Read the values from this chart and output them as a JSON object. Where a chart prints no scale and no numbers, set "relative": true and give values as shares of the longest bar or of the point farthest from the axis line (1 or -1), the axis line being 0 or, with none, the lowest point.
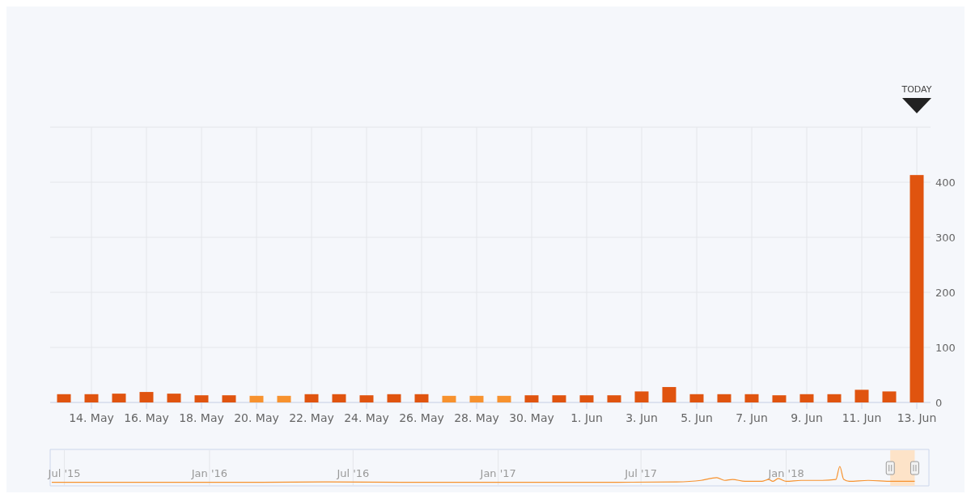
{
  "chart_data": [
    {
      "type": "bar",
      "categories": [
        null,
        "14. May",
        null,
        "16. May",
        null,
        "18. May",
        null,
        "20. May",
        null,
        "22. May",
        null,
        "24. May",
        null,
        "26. May",
        null,
        "28. May",
        null,
        "30. May",
        null,
        "1. Jun",
        null,
        "3. Jun",
        null,
        "5. Jun",
        null,
        "7. Jun",
        null,
        "9. Jun",
        null,
        "11. Jun",
        null,
        "13. Jun"
      ],
      "values": [
        15,
        15,
        16,
        19,
        16,
        13,
        13,
        12,
        12,
        15,
        15,
        13,
        15,
        15,
        12,
        12,
        12,
        13,
        13,
        13,
        13,
        20,
        28,
        15,
        15,
        15,
        13,
        15,
        15,
        23,
        20,
        413
      ],
      "colors": [
        "#e0540f",
        "#e0540f",
        "#e0540f",
        "#e0540f",
        "#e0540f",
        "#e0540f",
        "#e0540f",
        "#f7922e",
        "#f7922e",
        "#e0540f",
        "#e0540f",
        "#e0540f",
        "#e0540f",
        "#e0540f",
        "#f7922e",
        "#f7922e",
        "#f7922e",
        "#e0540f",
        "#e0540f",
        "#e0540f",
        "#e0540f",
        "#e0540f",
        "#e0540f",
        "#e0540f",
        "#e0540f",
        "#e0540f",
        "#e0540f",
        "#e0540f",
        "#e0540f",
        "#e0540f",
        "#e0540f",
        "#e0540f"
      ],
      "ylim": [
        0,
        500
      ],
      "yticks": [
        0,
        100,
        200,
        300,
        400,
        {
          "value": 500,
          "label": null
        }
      ],
      "grid": true,
      "annotations": [
        "TODAY"
      ]
    },
    {
      "type": "line",
      "relative": true,
      "color": "#f7922e",
      "x": [
        "2015-06-15",
        "2015-09-01",
        "2015-12-01",
        "2016-03-01",
        "2016-06-01",
        "2016-09-01",
        "2016-12-01",
        "2017-03-01",
        "2017-06-01",
        "2017-08-15",
        "2017-09-15",
        "2017-10-05",
        "2017-10-15",
        "2017-10-25",
        "2017-11-10",
        "2017-12-01",
        "2017-12-10",
        "2017-12-15",
        "2017-12-22",
        "2018-01-01",
        "2018-01-20",
        "2018-02-15",
        "2018-03-05",
        "2018-03-10",
        "2018-03-15",
        "2018-03-22",
        "2018-04-15",
        "2018-05-15",
        "2018-06-13"
      ],
      "values": [
        0.15,
        0.15,
        0.15,
        0.15,
        0.17,
        0.15,
        0.15,
        0.15,
        0.15,
        0.17,
        0.25,
        0.4,
        0.25,
        0.3,
        0.2,
        0.2,
        0.3,
        0.2,
        0.35,
        0.2,
        0.25,
        0.25,
        0.3,
        1,
        0.3,
        0.2,
        0.25,
        0.2,
        0.2
      ],
      "xlim": [
        "2015-06-13",
        "2018-07-01"
      ],
      "xticks": [
        {
          "value": "2015-07-01",
          "label": "Jul '15"
        },
        {
          "value": "2016-01-01",
          "label": "Jan '16"
        },
        {
          "value": "2016-07-01",
          "label": "Jul '16"
        },
        {
          "value": "2017-01-01",
          "label": "Jan '17"
        },
        {
          "value": "2017-07-01",
          "label": "Jul '17"
        },
        {
          "value": "2018-01-01",
          "label": "Jan '18"
        }
      ],
      "grid": "x",
      "bands": [
        {
          "axis": "x",
          "from": "2018-05-13",
          "to": "2018-06-13",
          "color": "#fde3c8"
        }
      ]
    }
  ]
}
